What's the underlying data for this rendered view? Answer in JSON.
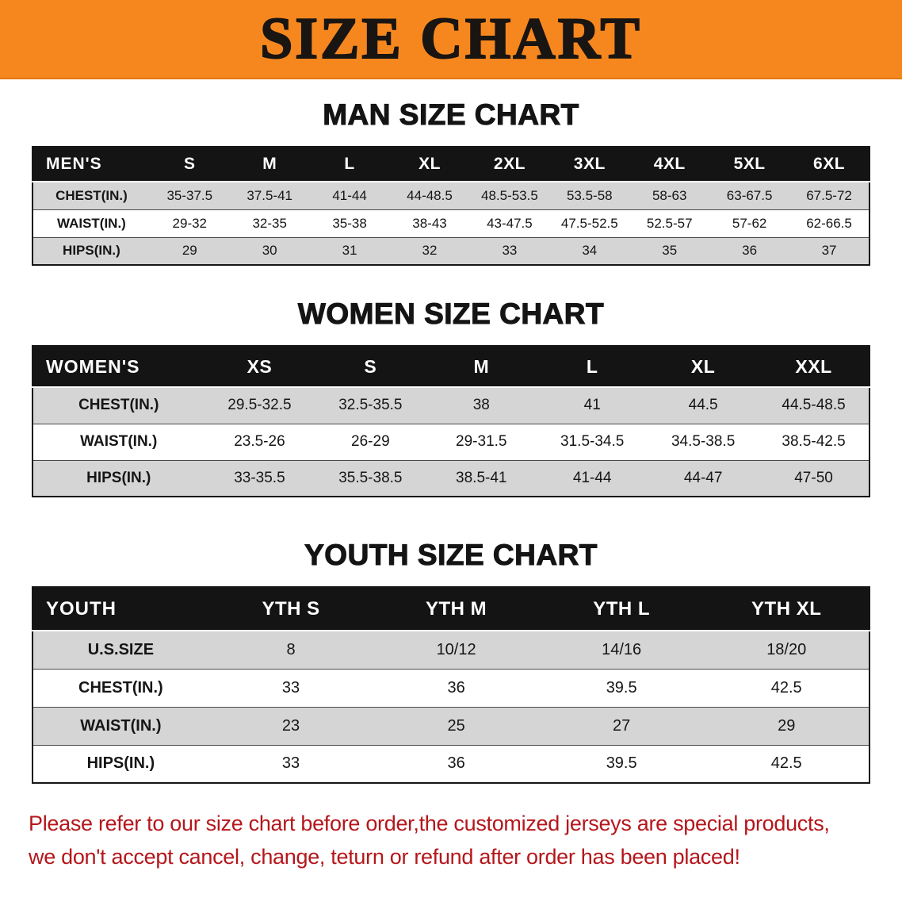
{
  "banner": {
    "title": "SIZE CHART"
  },
  "men": {
    "heading": "MAN SIZE CHART",
    "header": [
      "MEN'S",
      "S",
      "M",
      "L",
      "XL",
      "2XL",
      "3XL",
      "4XL",
      "5XL",
      "6XL"
    ],
    "rows": [
      [
        "CHEST(IN.)",
        "35-37.5",
        "37.5-41",
        "41-44",
        "44-48.5",
        "48.5-53.5",
        "53.5-58",
        "58-63",
        "63-67.5",
        "67.5-72"
      ],
      [
        "WAIST(IN.)",
        "29-32",
        "32-35",
        "35-38",
        "38-43",
        "43-47.5",
        "47.5-52.5",
        "52.5-57",
        "57-62",
        "62-66.5"
      ],
      [
        "HIPS(IN.)",
        "29",
        "30",
        "31",
        "32",
        "33",
        "34",
        "35",
        "36",
        "37"
      ]
    ]
  },
  "women": {
    "heading": "WOMEN SIZE CHART",
    "header": [
      "WOMEN'S",
      "XS",
      "S",
      "M",
      "L",
      "XL",
      "XXL"
    ],
    "rows": [
      [
        "CHEST(IN.)",
        "29.5-32.5",
        "32.5-35.5",
        "38",
        "41",
        "44.5",
        "44.5-48.5"
      ],
      [
        "WAIST(IN.)",
        "23.5-26",
        "26-29",
        "29-31.5",
        "31.5-34.5",
        "34.5-38.5",
        "38.5-42.5"
      ],
      [
        "HIPS(IN.)",
        "33-35.5",
        "35.5-38.5",
        "38.5-41",
        "41-44",
        "44-47",
        "47-50"
      ]
    ]
  },
  "youth": {
    "heading": "YOUTH SIZE CHART",
    "header": [
      "YOUTH",
      "YTH S",
      "YTH M",
      "YTH L",
      "YTH XL"
    ],
    "rows": [
      [
        "U.S.SIZE",
        "8",
        "10/12",
        "14/16",
        "18/20"
      ],
      [
        "CHEST(IN.)",
        "33",
        "36",
        "39.5",
        "42.5"
      ],
      [
        "WAIST(IN.)",
        "23",
        "25",
        "27",
        "29"
      ],
      [
        "HIPS(IN.)",
        "33",
        "36",
        "39.5",
        "42.5"
      ]
    ]
  },
  "footer": {
    "line1": "Please refer to our size chart before order,the customized jerseys are special products,",
    "line2": "we don't accept cancel, change, teturn or refund after order has been placed!"
  },
  "colors": {
    "banner_bg": "#f6871f",
    "header_row_bg": "#141414",
    "stripe_row_bg": "#d5d5d5",
    "disclaimer_text": "#b5161b"
  }
}
